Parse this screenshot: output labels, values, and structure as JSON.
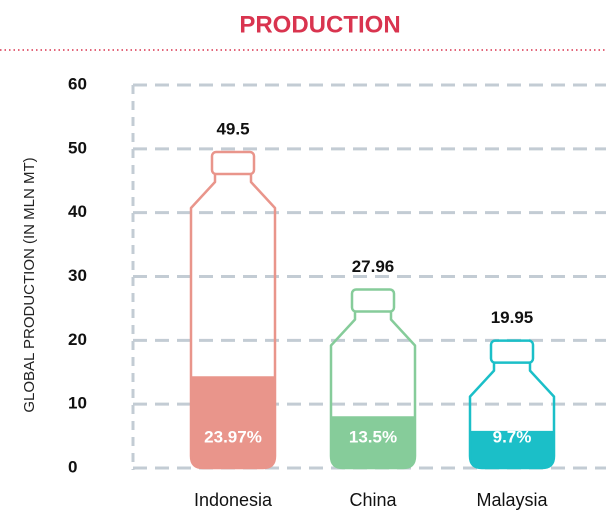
{
  "chart_data": {
    "type": "bottle",
    "title": "PRODUCTION",
    "y_label": "GLOBAL PRODUCTION (IN MLN MT)",
    "categories": [
      "Indonesia",
      "China",
      "Malaysia"
    ],
    "values": [
      49.5,
      27.96,
      19.95
    ],
    "shares": [
      23.97,
      13.5,
      9.7
    ],
    "share_labels": [
      "23.97%",
      "13.5%",
      "9.7%"
    ],
    "colors": [
      "#e9958b",
      "#86cc9a",
      "#1bbfc8"
    ],
    "ylim": [
      0,
      60
    ],
    "yticks": [
      0,
      10,
      20,
      30,
      40,
      50,
      60
    ],
    "grid": true
  }
}
